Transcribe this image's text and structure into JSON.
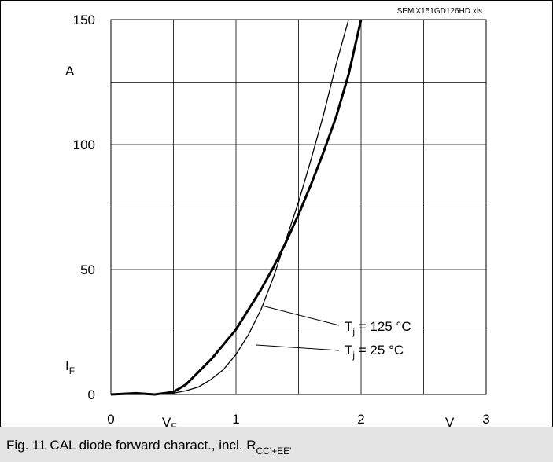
{
  "chart_data": {
    "type": "line",
    "source_label": "SEMiX151GD126HD.xls",
    "y_unit_label": "A",
    "y_axis_symbol": "I",
    "y_axis_symbol_sub": "F",
    "x_axis_symbol": "V",
    "x_axis_symbol_sub": "F",
    "x_unit_label": "V",
    "xlim": [
      0,
      3
    ],
    "ylim": [
      0,
      150
    ],
    "x_ticks": [
      "0",
      "1",
      "2",
      "3"
    ],
    "y_ticks": [
      "0",
      "50",
      "100",
      "150"
    ],
    "grid": true,
    "series": [
      {
        "name": "Tj = 125 °C",
        "label_main": "T",
        "label_sub": "j",
        "label_rest": " = 125 °C",
        "color": "#000000",
        "x": [
          0.0,
          0.2,
          0.35,
          0.5,
          0.6,
          0.7,
          0.8,
          0.9,
          1.0,
          1.1,
          1.2,
          1.3,
          1.4,
          1.5,
          1.6,
          1.7,
          1.8,
          1.9,
          2.0
        ],
        "y": [
          0,
          0.5,
          0,
          1,
          4,
          9,
          14,
          20,
          26,
          34,
          42,
          51,
          61,
          72,
          84,
          97,
          111,
          128,
          150
        ]
      },
      {
        "name": "Tj = 25 °C",
        "label_main": "T",
        "label_sub": "j",
        "label_rest": " = 25 °C",
        "color": "#000000",
        "x": [
          0.0,
          0.2,
          0.35,
          0.5,
          0.6,
          0.7,
          0.8,
          0.9,
          1.0,
          1.1,
          1.2,
          1.3,
          1.4,
          1.5,
          1.6,
          1.7,
          1.8,
          1.9
        ],
        "y": [
          0,
          0,
          0,
          0.5,
          1.5,
          3,
          6,
          10,
          16,
          24,
          34,
          47,
          62,
          77,
          94,
          112,
          132,
          150
        ]
      }
    ]
  },
  "caption": {
    "text": "Fig. 11 CAL diode forward charact., incl. R",
    "sub": "CC'+EE'"
  }
}
